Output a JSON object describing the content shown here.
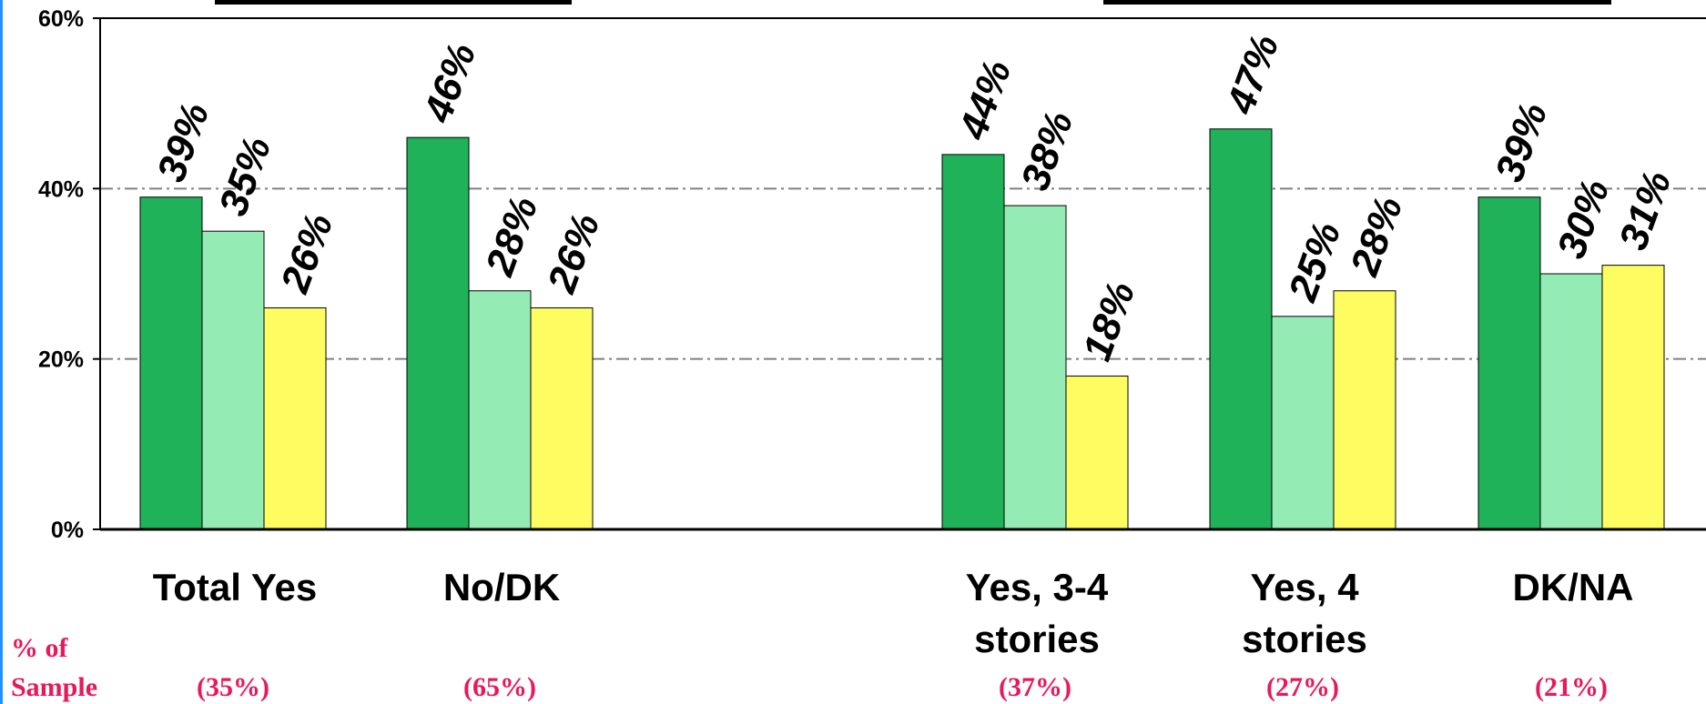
{
  "chart_data": {
    "type": "bar",
    "title": "",
    "xlabel": "",
    "ylabel": "",
    "ylim": [
      0,
      60
    ],
    "y_ticks": [
      "0%",
      "20%",
      "40%",
      "60%"
    ],
    "grid": "horizontal dash-dot at 20% and 40%",
    "categories": [
      [
        "Total Yes"
      ],
      [
        "No/DK"
      ],
      [
        "Yes, 3-4",
        "stories"
      ],
      [
        "Yes, 4",
        "stories"
      ],
      [
        "DK/NA"
      ]
    ],
    "series_colors": [
      "#1fb259",
      "#94ebb4",
      "#fdfd62"
    ],
    "series": [
      {
        "values": [
          39,
          46,
          44,
          47,
          39
        ]
      },
      {
        "values": [
          35,
          28,
          38,
          25,
          30
        ]
      },
      {
        "values": [
          26,
          26,
          18,
          28,
          31
        ]
      }
    ],
    "value_labels": [
      [
        "39%",
        "35%",
        "26%"
      ],
      [
        "46%",
        "28%",
        "26%"
      ],
      [
        "44%",
        "38%",
        "18%"
      ],
      [
        "47%",
        "25%",
        "28%"
      ],
      [
        "39%",
        "30%",
        "31%"
      ]
    ],
    "sample": {
      "label_line1": "% of",
      "label_line2": "Sample",
      "values": [
        "(35%)",
        "(65%)",
        "(37%)",
        "(27%)",
        "(21%)"
      ]
    }
  }
}
